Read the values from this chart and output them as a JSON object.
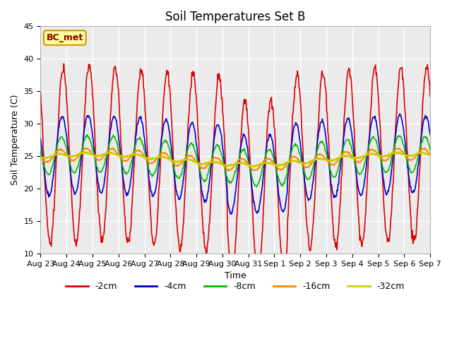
{
  "title": "Soil Temperatures Set B",
  "xlabel": "Time",
  "ylabel": "Soil Temperature (C)",
  "ylim": [
    10,
    45
  ],
  "annotation": "BC_met",
  "plot_bg": "#ebebeb",
  "series": {
    "-2cm": {
      "color": "#dd0000",
      "linewidth": 1.2
    },
    "-4cm": {
      "color": "#0000cc",
      "linewidth": 1.2
    },
    "-8cm": {
      "color": "#00bb00",
      "linewidth": 1.2
    },
    "-16cm": {
      "color": "#ff8800",
      "linewidth": 1.5
    },
    "-32cm": {
      "color": "#cccc00",
      "linewidth": 2.0
    }
  },
  "tick_labels": [
    "Aug 23",
    "Aug 24",
    "Aug 25",
    "Aug 26",
    "Aug 27",
    "Aug 28",
    "Aug 29",
    "Aug 30",
    "Aug 31",
    "Sep 1",
    "Sep 2",
    "Sep 3",
    "Sep 4",
    "Sep 5",
    "Sep 6",
    "Sep 7"
  ],
  "grid_color": "white",
  "title_fontsize": 12,
  "mean_temp": 24.5,
  "amp_2cm": 13.5,
  "amp_4cm": 6.0,
  "amp_8cm": 2.8,
  "amp_16cm": 0.9,
  "amp_32cm": 0.25,
  "phase_2cm": 0.62,
  "phase_4cm": 0.58,
  "phase_8cm": 0.55,
  "phase_16cm": 0.5,
  "phase_32cm": 0.45
}
